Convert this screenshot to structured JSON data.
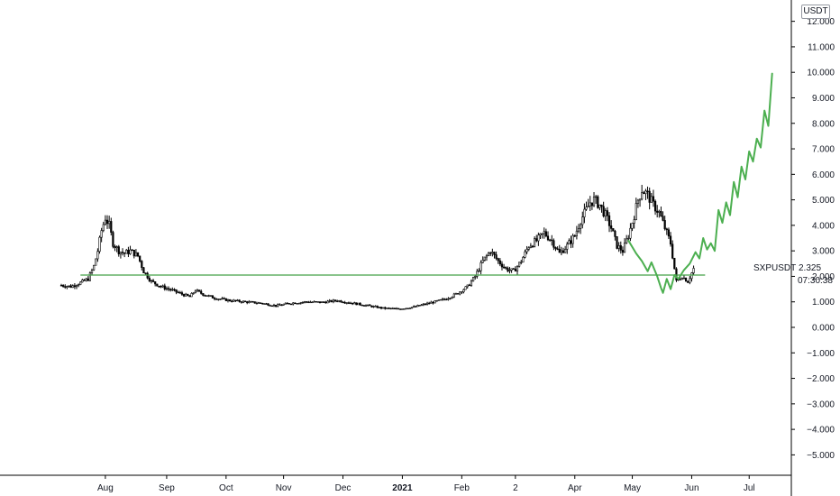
{
  "chart_data": {
    "type": "candlestick",
    "symbol": "SXPUSDT",
    "currency": "USDT",
    "last_price": "2.325",
    "countdown": "07:30:38",
    "y_ticks": [
      "12.000",
      "11.000",
      "10.000",
      "9.000",
      "8.000",
      "7.000",
      "6.000",
      "5.000",
      "4.000",
      "3.000",
      "2.000",
      "1.000",
      "0.000",
      "−1.000",
      "−2.000",
      "−3.000",
      "−4.000",
      "−5.000"
    ],
    "y_tick_values": [
      12,
      11,
      10,
      9,
      8,
      7,
      6,
      5,
      4,
      3,
      2,
      1,
      0,
      -1,
      -2,
      -3,
      -4,
      -5
    ],
    "ylim": [
      -5.5,
      12.5
    ],
    "x_ticks": [
      "Aug",
      "Sep",
      "Oct",
      "Nov",
      "Dec",
      "2021",
      "Feb",
      "2",
      "Apr",
      "May",
      "Jun",
      "Jul"
    ],
    "x_tick_bold": [
      false,
      false,
      false,
      false,
      false,
      true,
      false,
      false,
      false,
      false,
      false,
      false
    ],
    "x_tick_positions_days": [
      23,
      55,
      86,
      116,
      147,
      178,
      209,
      237,
      268,
      298,
      329,
      359
    ],
    "price_path": [
      [
        0,
        1.65
      ],
      [
        5,
        1.6
      ],
      [
        10,
        1.75
      ],
      [
        14,
        1.9
      ],
      [
        17,
        2.4
      ],
      [
        19,
        3.0
      ],
      [
        21,
        3.8
      ],
      [
        23,
        4.3
      ],
      [
        25,
        4.0
      ],
      [
        27,
        3.3
      ],
      [
        30,
        3.0
      ],
      [
        33,
        2.9
      ],
      [
        36,
        3.0
      ],
      [
        40,
        2.8
      ],
      [
        43,
        2.2
      ],
      [
        47,
        1.8
      ],
      [
        52,
        1.6
      ],
      [
        58,
        1.45
      ],
      [
        63,
        1.3
      ],
      [
        67,
        1.2
      ],
      [
        70,
        1.45
      ],
      [
        74,
        1.3
      ],
      [
        80,
        1.15
      ],
      [
        88,
        1.05
      ],
      [
        96,
        1.0
      ],
      [
        104,
        0.95
      ],
      [
        112,
        0.85
      ],
      [
        120,
        0.95
      ],
      [
        128,
        1.0
      ],
      [
        136,
        0.98
      ],
      [
        144,
        1.05
      ],
      [
        152,
        0.95
      ],
      [
        160,
        0.85
      ],
      [
        168,
        0.75
      ],
      [
        176,
        0.72
      ],
      [
        184,
        0.8
      ],
      [
        192,
        0.95
      ],
      [
        200,
        1.1
      ],
      [
        206,
        1.3
      ],
      [
        212,
        1.6
      ],
      [
        216,
        2.0
      ],
      [
        220,
        2.6
      ],
      [
        224,
        3.0
      ],
      [
        228,
        2.6
      ],
      [
        232,
        2.3
      ],
      [
        236,
        2.2
      ],
      [
        240,
        2.6
      ],
      [
        244,
        3.2
      ],
      [
        248,
        3.4
      ],
      [
        252,
        3.7
      ],
      [
        256,
        3.4
      ],
      [
        260,
        2.9
      ],
      [
        264,
        3.2
      ],
      [
        268,
        3.6
      ],
      [
        271,
        4.2
      ],
      [
        274,
        4.6
      ],
      [
        276,
        4.9
      ],
      [
        278,
        5.0
      ],
      [
        281,
        4.8
      ],
      [
        284,
        4.4
      ],
      [
        287,
        3.9
      ],
      [
        290,
        3.2
      ],
      [
        293,
        3.0
      ],
      [
        296,
        3.6
      ],
      [
        299,
        4.4
      ],
      [
        301,
        5.0
      ],
      [
        303,
        5.4
      ],
      [
        306,
        5.2
      ],
      [
        309,
        4.8
      ],
      [
        312,
        4.5
      ],
      [
        315,
        3.9
      ],
      [
        318,
        3.3
      ],
      [
        321,
        1.8
      ],
      [
        324,
        2.0
      ],
      [
        327,
        1.8
      ],
      [
        330,
        2.3
      ]
    ],
    "projection_path": [
      [
        296,
        3.4
      ],
      [
        300,
        2.9
      ],
      [
        303,
        2.6
      ],
      [
        306,
        2.2
      ],
      [
        308,
        2.55
      ],
      [
        311,
        2.0
      ],
      [
        313,
        1.55
      ],
      [
        314,
        1.35
      ],
      [
        316,
        1.9
      ],
      [
        318,
        1.5
      ],
      [
        320,
        2.05
      ],
      [
        322,
        1.9
      ],
      [
        325,
        2.25
      ],
      [
        328,
        2.5
      ],
      [
        331,
        2.95
      ],
      [
        333,
        2.7
      ],
      [
        335,
        3.5
      ],
      [
        337,
        3.05
      ],
      [
        339,
        3.3
      ],
      [
        341,
        3.0
      ],
      [
        343,
        4.6
      ],
      [
        345,
        4.1
      ],
      [
        347,
        4.9
      ],
      [
        349,
        4.4
      ],
      [
        351,
        5.7
      ],
      [
        353,
        5.1
      ],
      [
        355,
        6.3
      ],
      [
        357,
        5.8
      ],
      [
        359,
        6.9
      ],
      [
        361,
        6.5
      ],
      [
        363,
        7.4
      ],
      [
        365,
        7.05
      ],
      [
        367,
        8.5
      ],
      [
        369,
        7.9
      ],
      [
        371,
        9.95
      ]
    ],
    "support_level": 2.05,
    "colors": {
      "candles": "#000000",
      "projection": "#4caf50",
      "support": "#43a047"
    },
    "grid": false,
    "legend": "none"
  }
}
